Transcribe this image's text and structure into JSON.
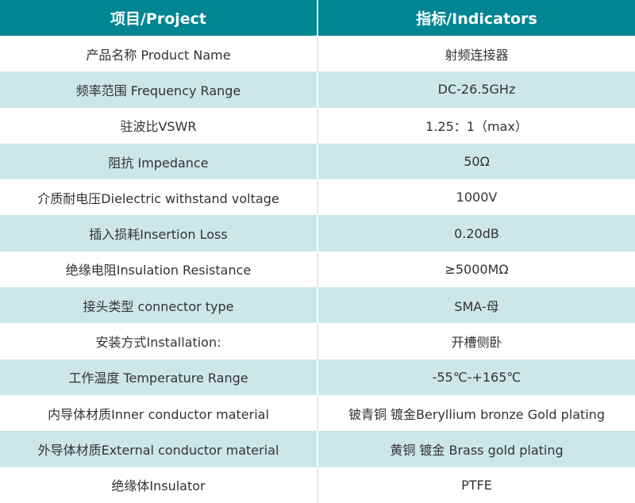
{
  "colors": {
    "header": "#008592",
    "stripe": "#cde6ea"
  },
  "headers": [
    "项目/Project",
    "指标/Indicators"
  ],
  "rows": [
    [
      "产品名称 Product Name",
      "射频连接器"
    ],
    [
      "频率范围 Frequency Range",
      "DC-26.5GHz"
    ],
    [
      "驻波比VSWR",
      "1.25：1（max）"
    ],
    [
      "阻抗 Impedance",
      "50Ω"
    ],
    [
      "介质耐电压Dielectric withstand voltage",
      "1000V"
    ],
    [
      "插入损耗Insertion Loss",
      "0.20dB"
    ],
    [
      "绝缘电阻Insulation Resistance",
      "≥5000MΩ"
    ],
    [
      "接头类型  connector type",
      "SMA-母"
    ],
    [
      "安装方式Installation:",
      "开槽侧卧"
    ],
    [
      "工作温度 Temperature Range",
      "-55℃-+165℃"
    ],
    [
      "内导体材质Inner conductor material",
      "铍青铜 镀金Beryllium bronze Gold plating"
    ],
    [
      "外导体材质External conductor material",
      "黄铜 镀金 Brass gold plating"
    ],
    [
      "绝缘体Insulator",
      "PTFE"
    ]
  ]
}
